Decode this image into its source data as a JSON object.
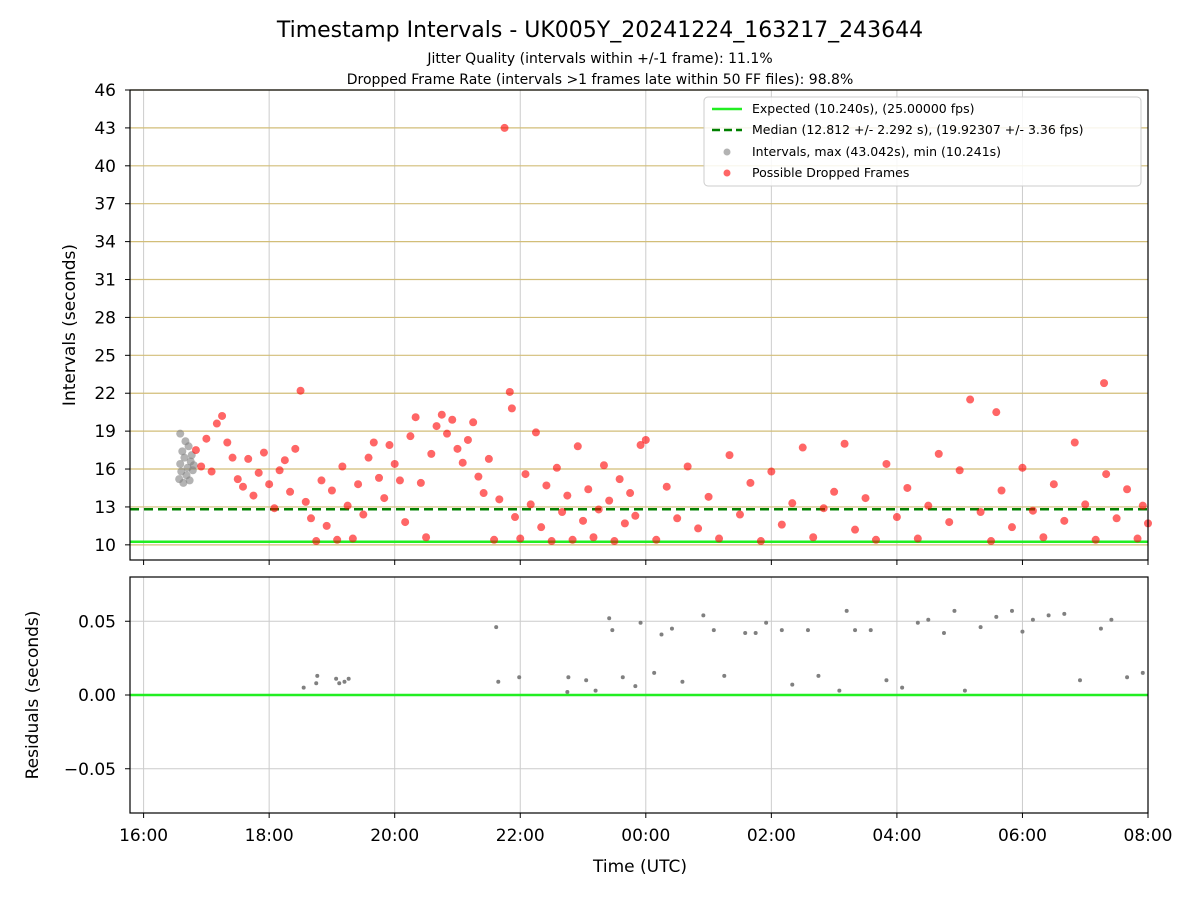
{
  "figure": {
    "title": "Timestamp Intervals - UK005Y_20241224_163217_243644",
    "subtitle_1": "Jitter Quality (intervals within +/-1 frame): 11.1%",
    "subtitle_2": "Dropped Frame Rate (intervals >1 frames late within 50 FF files): 98.8%"
  },
  "chart_data": [
    {
      "type": "scatter",
      "panel": "top",
      "ylabel": "Intervals (seconds)",
      "xlabel": "",
      "xlim": [
        "15:47",
        "08:00"
      ],
      "ylim": [
        8.8,
        46
      ],
      "y_ticks": [
        10,
        13,
        16,
        19,
        22,
        25,
        28,
        31,
        34,
        37,
        40,
        43,
        46
      ],
      "x_ticks": [
        "16:00",
        "18:00",
        "20:00",
        "22:00",
        "00:00",
        "02:00",
        "04:00",
        "06:00",
        "08:00"
      ],
      "grid": true,
      "legend_position": "top-right",
      "reference_lines": [
        {
          "name": "Expected (10.240s), (25.00000 fps)",
          "y": 10.24,
          "color": "#22ee22",
          "style": "solid"
        },
        {
          "name": "Median (12.812 +/- 2.292 s), (19.92307 +/- 3.36 fps)",
          "y": 12.812,
          "color": "#008000",
          "style": "dashed"
        }
      ],
      "series": [
        {
          "name": "Intervals, max (43.042s), min (10.241s)",
          "color": "#808080",
          "points": [
            {
              "x": "16:34",
              "y": 15.2
            },
            {
              "x": "16:35",
              "y": 16.4
            },
            {
              "x": "16:35",
              "y": 18.8
            },
            {
              "x": "16:36",
              "y": 15.8
            },
            {
              "x": "16:37",
              "y": 17.4
            },
            {
              "x": "16:38",
              "y": 14.9
            },
            {
              "x": "16:39",
              "y": 16.9
            },
            {
              "x": "16:40",
              "y": 18.2
            },
            {
              "x": "16:41",
              "y": 15.5
            },
            {
              "x": "16:42",
              "y": 16.1
            },
            {
              "x": "16:43",
              "y": 17.8
            },
            {
              "x": "16:44",
              "y": 15.1
            },
            {
              "x": "16:45",
              "y": 16.6
            },
            {
              "x": "16:46",
              "y": 17.1
            },
            {
              "x": "16:47",
              "y": 15.9
            },
            {
              "x": "16:48",
              "y": 16.3
            }
          ]
        },
        {
          "name": "Possible Dropped Frames",
          "color": "#ff0000",
          "points": [
            {
              "x": "16:50",
              "y": 17.5
            },
            {
              "x": "16:55",
              "y": 16.2
            },
            {
              "x": "17:00",
              "y": 18.4
            },
            {
              "x": "17:05",
              "y": 15.8
            },
            {
              "x": "17:10",
              "y": 19.6
            },
            {
              "x": "17:15",
              "y": 20.2
            },
            {
              "x": "17:20",
              "y": 18.1
            },
            {
              "x": "17:25",
              "y": 16.9
            },
            {
              "x": "17:30",
              "y": 15.2
            },
            {
              "x": "17:35",
              "y": 14.6
            },
            {
              "x": "17:40",
              "y": 16.8
            },
            {
              "x": "17:45",
              "y": 13.9
            },
            {
              "x": "17:50",
              "y": 15.7
            },
            {
              "x": "17:55",
              "y": 17.3
            },
            {
              "x": "18:00",
              "y": 14.8
            },
            {
              "x": "18:05",
              "y": 12.9
            },
            {
              "x": "18:10",
              "y": 15.9
            },
            {
              "x": "18:15",
              "y": 16.7
            },
            {
              "x": "18:20",
              "y": 14.2
            },
            {
              "x": "18:25",
              "y": 17.6
            },
            {
              "x": "18:30",
              "y": 22.2
            },
            {
              "x": "18:35",
              "y": 13.4
            },
            {
              "x": "18:40",
              "y": 12.1
            },
            {
              "x": "18:45",
              "y": 10.3
            },
            {
              "x": "18:50",
              "y": 15.1
            },
            {
              "x": "18:55",
              "y": 11.5
            },
            {
              "x": "19:00",
              "y": 14.3
            },
            {
              "x": "19:05",
              "y": 10.4
            },
            {
              "x": "19:10",
              "y": 16.2
            },
            {
              "x": "19:15",
              "y": 13.1
            },
            {
              "x": "19:20",
              "y": 10.5
            },
            {
              "x": "19:25",
              "y": 14.8
            },
            {
              "x": "19:30",
              "y": 12.4
            },
            {
              "x": "19:35",
              "y": 16.9
            },
            {
              "x": "19:40",
              "y": 18.1
            },
            {
              "x": "19:45",
              "y": 15.3
            },
            {
              "x": "19:50",
              "y": 13.7
            },
            {
              "x": "19:55",
              "y": 17.9
            },
            {
              "x": "20:00",
              "y": 16.4
            },
            {
              "x": "20:05",
              "y": 15.1
            },
            {
              "x": "20:10",
              "y": 11.8
            },
            {
              "x": "20:15",
              "y": 18.6
            },
            {
              "x": "20:20",
              "y": 20.1
            },
            {
              "x": "20:25",
              "y": 14.9
            },
            {
              "x": "20:30",
              "y": 10.6
            },
            {
              "x": "20:35",
              "y": 17.2
            },
            {
              "x": "20:40",
              "y": 19.4
            },
            {
              "x": "20:45",
              "y": 20.3
            },
            {
              "x": "20:50",
              "y": 18.8
            },
            {
              "x": "20:55",
              "y": 19.9
            },
            {
              "x": "21:00",
              "y": 17.6
            },
            {
              "x": "21:05",
              "y": 16.5
            },
            {
              "x": "21:10",
              "y": 18.3
            },
            {
              "x": "21:15",
              "y": 19.7
            },
            {
              "x": "21:20",
              "y": 15.4
            },
            {
              "x": "21:25",
              "y": 14.1
            },
            {
              "x": "21:30",
              "y": 16.8
            },
            {
              "x": "21:35",
              "y": 10.4
            },
            {
              "x": "21:40",
              "y": 13.6
            },
            {
              "x": "21:45",
              "y": 43.0
            },
            {
              "x": "21:50",
              "y": 22.1
            },
            {
              "x": "21:52",
              "y": 20.8
            },
            {
              "x": "21:55",
              "y": 12.2
            },
            {
              "x": "22:00",
              "y": 10.5
            },
            {
              "x": "22:05",
              "y": 15.6
            },
            {
              "x": "22:10",
              "y": 13.2
            },
            {
              "x": "22:15",
              "y": 18.9
            },
            {
              "x": "22:20",
              "y": 11.4
            },
            {
              "x": "22:25",
              "y": 14.7
            },
            {
              "x": "22:30",
              "y": 10.3
            },
            {
              "x": "22:35",
              "y": 16.1
            },
            {
              "x": "22:40",
              "y": 12.6
            },
            {
              "x": "22:45",
              "y": 13.9
            },
            {
              "x": "22:50",
              "y": 10.4
            },
            {
              "x": "22:55",
              "y": 17.8
            },
            {
              "x": "23:00",
              "y": 11.9
            },
            {
              "x": "23:05",
              "y": 14.4
            },
            {
              "x": "23:10",
              "y": 10.6
            },
            {
              "x": "23:15",
              "y": 12.8
            },
            {
              "x": "23:20",
              "y": 16.3
            },
            {
              "x": "23:25",
              "y": 13.5
            },
            {
              "x": "23:30",
              "y": 10.3
            },
            {
              "x": "23:35",
              "y": 15.2
            },
            {
              "x": "23:40",
              "y": 11.7
            },
            {
              "x": "23:45",
              "y": 14.1
            },
            {
              "x": "23:50",
              "y": 12.3
            },
            {
              "x": "23:55",
              "y": 17.9
            },
            {
              "x": "00:00",
              "y": 18.3
            },
            {
              "x": "00:10",
              "y": 10.4
            },
            {
              "x": "00:20",
              "y": 14.6
            },
            {
              "x": "00:30",
              "y": 12.1
            },
            {
              "x": "00:40",
              "y": 16.2
            },
            {
              "x": "00:50",
              "y": 11.3
            },
            {
              "x": "01:00",
              "y": 13.8
            },
            {
              "x": "01:10",
              "y": 10.5
            },
            {
              "x": "01:20",
              "y": 17.1
            },
            {
              "x": "01:30",
              "y": 12.4
            },
            {
              "x": "01:40",
              "y": 14.9
            },
            {
              "x": "01:50",
              "y": 10.3
            },
            {
              "x": "02:00",
              "y": 15.8
            },
            {
              "x": "02:10",
              "y": 11.6
            },
            {
              "x": "02:20",
              "y": 13.3
            },
            {
              "x": "02:30",
              "y": 17.7
            },
            {
              "x": "02:40",
              "y": 10.6
            },
            {
              "x": "02:50",
              "y": 12.9
            },
            {
              "x": "03:00",
              "y": 14.2
            },
            {
              "x": "03:10",
              "y": 18.0
            },
            {
              "x": "03:20",
              "y": 11.2
            },
            {
              "x": "03:30",
              "y": 13.7
            },
            {
              "x": "03:40",
              "y": 10.4
            },
            {
              "x": "03:50",
              "y": 16.4
            },
            {
              "x": "04:00",
              "y": 12.2
            },
            {
              "x": "04:10",
              "y": 14.5
            },
            {
              "x": "04:20",
              "y": 10.5
            },
            {
              "x": "04:30",
              "y": 13.1
            },
            {
              "x": "04:40",
              "y": 17.2
            },
            {
              "x": "04:50",
              "y": 11.8
            },
            {
              "x": "05:00",
              "y": 15.9
            },
            {
              "x": "05:10",
              "y": 21.5
            },
            {
              "x": "05:20",
              "y": 12.6
            },
            {
              "x": "05:30",
              "y": 10.3
            },
            {
              "x": "05:35",
              "y": 20.5
            },
            {
              "x": "05:40",
              "y": 14.3
            },
            {
              "x": "05:50",
              "y": 11.4
            },
            {
              "x": "06:00",
              "y": 16.1
            },
            {
              "x": "06:10",
              "y": 12.7
            },
            {
              "x": "06:20",
              "y": 10.6
            },
            {
              "x": "06:30",
              "y": 14.8
            },
            {
              "x": "06:40",
              "y": 11.9
            },
            {
              "x": "06:50",
              "y": 18.1
            },
            {
              "x": "07:00",
              "y": 13.2
            },
            {
              "x": "07:10",
              "y": 10.4
            },
            {
              "x": "07:18",
              "y": 22.8
            },
            {
              "x": "07:20",
              "y": 15.6
            },
            {
              "x": "07:30",
              "y": 12.1
            },
            {
              "x": "07:40",
              "y": 14.4
            },
            {
              "x": "07:50",
              "y": 10.5
            },
            {
              "x": "07:55",
              "y": 13.1
            },
            {
              "x": "08:00",
              "y": 11.7
            }
          ]
        }
      ]
    },
    {
      "type": "scatter",
      "panel": "bottom",
      "ylabel": "Residuals (seconds)",
      "xlabel": "Time (UTC)",
      "xlim": [
        "15:47",
        "08:00"
      ],
      "ylim": [
        -0.08,
        0.08
      ],
      "y_ticks": [
        0.05,
        0.0,
        -0.05
      ],
      "y_tick_labels": [
        "0.05",
        "0.00",
        "−0.05"
      ],
      "x_ticks": [
        "16:00",
        "18:00",
        "20:00",
        "22:00",
        "00:00",
        "02:00",
        "04:00",
        "06:00",
        "08:00"
      ],
      "grid": true,
      "reference_lines": [
        {
          "y": 0.0,
          "color": "#22ee22",
          "style": "solid"
        }
      ],
      "series": [
        {
          "color": "#808080",
          "points": [
            {
              "x": "18:33",
              "y": 0.005
            },
            {
              "x": "18:45",
              "y": 0.008
            },
            {
              "x": "18:46",
              "y": 0.013
            },
            {
              "x": "19:04",
              "y": 0.011
            },
            {
              "x": "19:07",
              "y": 0.008
            },
            {
              "x": "19:12",
              "y": 0.009
            },
            {
              "x": "19:16",
              "y": 0.011
            },
            {
              "x": "21:37",
              "y": 0.046
            },
            {
              "x": "21:39",
              "y": 0.009
            },
            {
              "x": "21:59",
              "y": 0.012
            },
            {
              "x": "22:45",
              "y": 0.002
            },
            {
              "x": "22:46",
              "y": 0.012
            },
            {
              "x": "23:03",
              "y": 0.01
            },
            {
              "x": "23:12",
              "y": 0.003
            },
            {
              "x": "23:25",
              "y": 0.052
            },
            {
              "x": "23:28",
              "y": 0.044
            },
            {
              "x": "23:38",
              "y": 0.012
            },
            {
              "x": "23:50",
              "y": 0.006
            },
            {
              "x": "23:55",
              "y": 0.049
            },
            {
              "x": "00:08",
              "y": 0.015
            },
            {
              "x": "00:15",
              "y": 0.041
            },
            {
              "x": "00:25",
              "y": 0.045
            },
            {
              "x": "00:35",
              "y": 0.009
            },
            {
              "x": "00:55",
              "y": 0.054
            },
            {
              "x": "01:05",
              "y": 0.044
            },
            {
              "x": "01:15",
              "y": 0.013
            },
            {
              "x": "01:35",
              "y": 0.042
            },
            {
              "x": "01:45",
              "y": 0.042
            },
            {
              "x": "01:55",
              "y": 0.049
            },
            {
              "x": "02:10",
              "y": 0.044
            },
            {
              "x": "02:20",
              "y": 0.007
            },
            {
              "x": "02:35",
              "y": 0.044
            },
            {
              "x": "02:45",
              "y": 0.013
            },
            {
              "x": "03:05",
              "y": 0.003
            },
            {
              "x": "03:12",
              "y": 0.057
            },
            {
              "x": "03:20",
              "y": 0.044
            },
            {
              "x": "03:35",
              "y": 0.044
            },
            {
              "x": "03:50",
              "y": 0.01
            },
            {
              "x": "04:05",
              "y": 0.005
            },
            {
              "x": "04:20",
              "y": 0.049
            },
            {
              "x": "04:30",
              "y": 0.051
            },
            {
              "x": "04:45",
              "y": 0.042
            },
            {
              "x": "04:55",
              "y": 0.057
            },
            {
              "x": "05:05",
              "y": 0.003
            },
            {
              "x": "05:20",
              "y": 0.046
            },
            {
              "x": "05:35",
              "y": 0.053
            },
            {
              "x": "05:50",
              "y": 0.057
            },
            {
              "x": "06:00",
              "y": 0.043
            },
            {
              "x": "06:10",
              "y": 0.051
            },
            {
              "x": "06:25",
              "y": 0.054
            },
            {
              "x": "06:40",
              "y": 0.055
            },
            {
              "x": "06:55",
              "y": 0.01
            },
            {
              "x": "07:15",
              "y": 0.045
            },
            {
              "x": "07:25",
              "y": 0.051
            },
            {
              "x": "07:40",
              "y": 0.012
            },
            {
              "x": "07:55",
              "y": 0.015
            }
          ]
        }
      ]
    }
  ]
}
